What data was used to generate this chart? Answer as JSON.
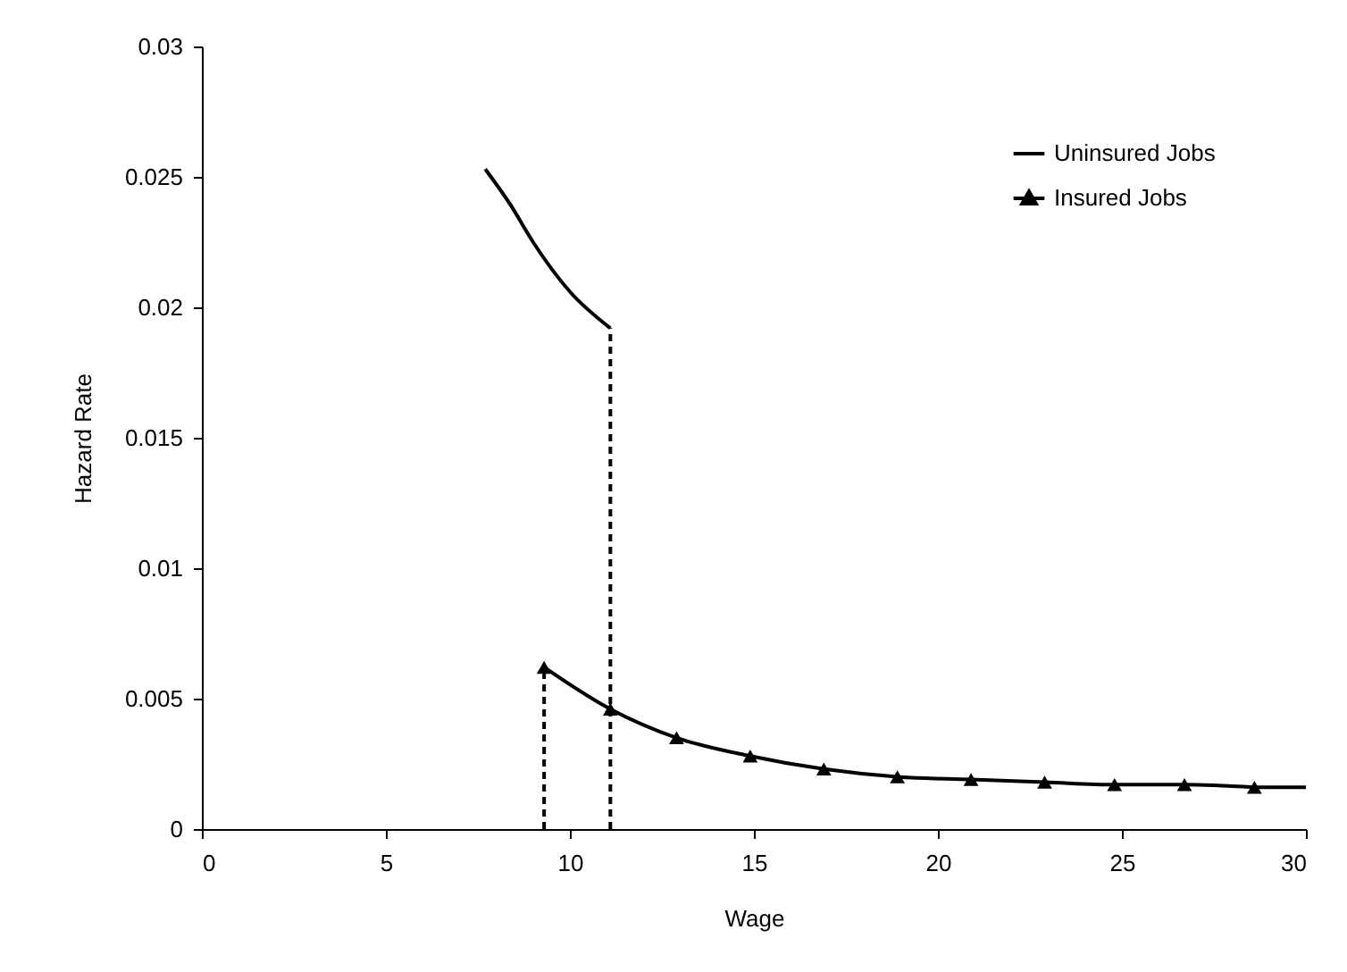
{
  "chart_data": {
    "type": "line",
    "xlabel": "Wage",
    "ylabel": "Hazard Rate",
    "xlim": [
      0,
      30
    ],
    "xticks": [
      0,
      5,
      10,
      15,
      20,
      25,
      30
    ],
    "ylim": [
      0,
      0.03
    ],
    "yticks": [
      0,
      0.005,
      0.01,
      0.015,
      0.02,
      0.025,
      0.03
    ],
    "grid": false,
    "legend": "top right",
    "series": [
      {
        "name": "Uninsured Jobs",
        "color": "#000000",
        "marker": "none",
        "line_style": "solid",
        "x": [
          7.7,
          8.4,
          9.0,
          10.0,
          11.1
        ],
        "values": [
          0.0253,
          0.0239,
          0.0225,
          0.0206,
          0.0192
        ]
      },
      {
        "name": "Insured Jobs",
        "color": "#000000",
        "marker": "triangle",
        "line_style": "solid",
        "x": [
          9.3,
          11.1,
          12.9,
          14.9,
          16.9,
          18.9,
          20.9,
          22.9,
          24.8,
          26.7,
          28.6
        ],
        "values": [
          0.0062,
          0.0046,
          0.0035,
          0.0028,
          0.0023,
          0.002,
          0.0019,
          0.0018,
          0.0017,
          0.0017,
          0.0016
        ]
      },
      {
        "color": "#000000",
        "marker": "none",
        "line_style": "solid",
        "x": [
          28.6,
          30
        ],
        "values": [
          0.0016,
          0.0016
        ]
      },
      {
        "color": "#000000",
        "marker": "none",
        "line_style": "dashed",
        "x": [
          9.3,
          9.3
        ],
        "values": [
          0,
          0.0062
        ]
      },
      {
        "color": "#000000",
        "marker": "none",
        "line_style": "dashed",
        "x": [
          11.1,
          11.1
        ],
        "values": [
          0,
          0.0192
        ]
      }
    ]
  }
}
